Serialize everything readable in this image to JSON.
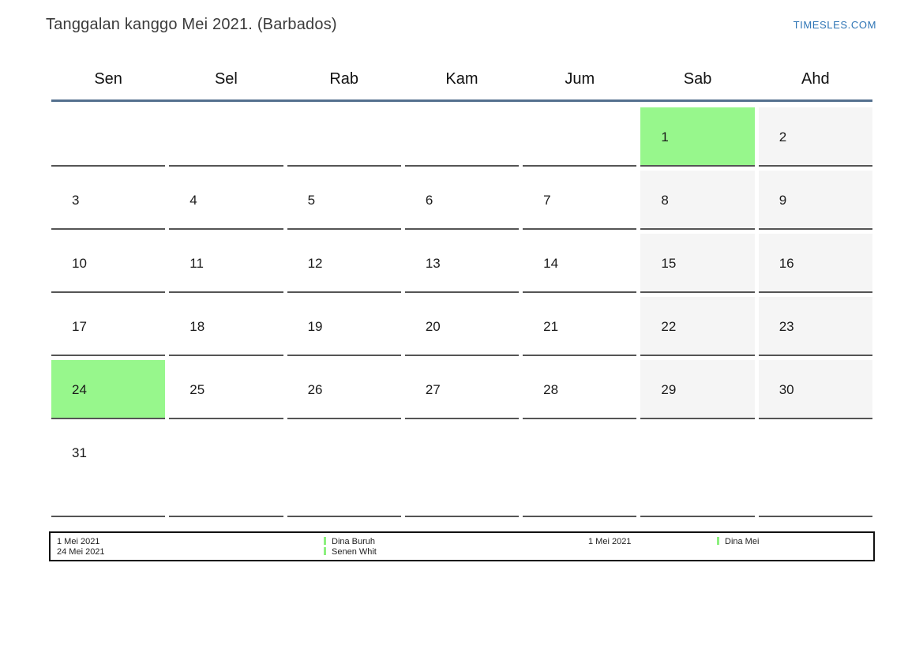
{
  "header": {
    "title": "Tanggalan kanggo Mei 2021. (Barbados)",
    "site_link": "TIMESLES.COM"
  },
  "calendar": {
    "day_headers": [
      "Sen",
      "Sel",
      "Rab",
      "Kam",
      "Jum",
      "Sab",
      "Ahd"
    ],
    "weekend_columns": [
      5,
      6
    ],
    "weeks": [
      [
        "",
        "",
        "",
        "",
        "",
        "1",
        "2"
      ],
      [
        "3",
        "4",
        "5",
        "6",
        "7",
        "8",
        "9"
      ],
      [
        "10",
        "11",
        "12",
        "13",
        "14",
        "15",
        "16"
      ],
      [
        "17",
        "18",
        "19",
        "20",
        "21",
        "22",
        "23"
      ],
      [
        "24",
        "25",
        "26",
        "27",
        "28",
        "29",
        "30"
      ],
      [
        "31",
        "",
        "",
        "",
        "",
        "",
        ""
      ]
    ],
    "holiday_dates": [
      "1",
      "24"
    ]
  },
  "legend": {
    "groups": [
      {
        "dates": [
          "1 Mei 2021",
          "24 Mei 2021"
        ],
        "labels": [
          "Dina Buruh",
          "Senen Whit"
        ]
      },
      {
        "dates": [
          "1 Mei 2021"
        ],
        "labels": [
          "Dina Mei"
        ]
      }
    ]
  },
  "colors": {
    "holiday_green": "#97f78c",
    "weekend_gray": "#f5f5f5",
    "header_rule_blue": "#54708e",
    "link_blue": "#2d74b5",
    "cell_border_gray": "#555555",
    "legend_marker_green": "#8cf07e"
  }
}
